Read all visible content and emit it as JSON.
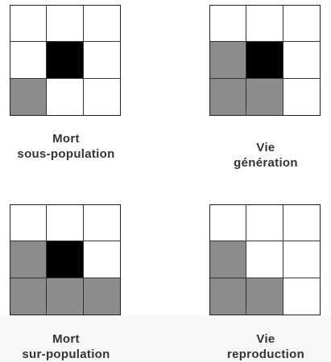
{
  "panels": [
    {
      "line1": "Mort",
      "line2": "sous-population",
      "cells": [
        "white",
        "white",
        "white",
        "white",
        "black",
        "white",
        "gray",
        "white",
        "white"
      ]
    },
    {
      "line1": "Vie",
      "line2": "génération",
      "cells": [
        "white",
        "white",
        "white",
        "gray",
        "black",
        "white",
        "gray",
        "gray",
        "white"
      ]
    },
    {
      "line1": "Mort",
      "line2": "sur-population",
      "cells": [
        "white",
        "white",
        "white",
        "gray",
        "black",
        "white",
        "gray",
        "gray",
        "gray"
      ]
    },
    {
      "line1": "Vie",
      "line2": "reproduction",
      "cells": [
        "white",
        "white",
        "white",
        "gray",
        "white",
        "white",
        "gray",
        "gray",
        "white"
      ]
    }
  ],
  "colors": {
    "dead": "#ffffff",
    "neighbor": "#8c8c8c",
    "center": "#000000"
  }
}
